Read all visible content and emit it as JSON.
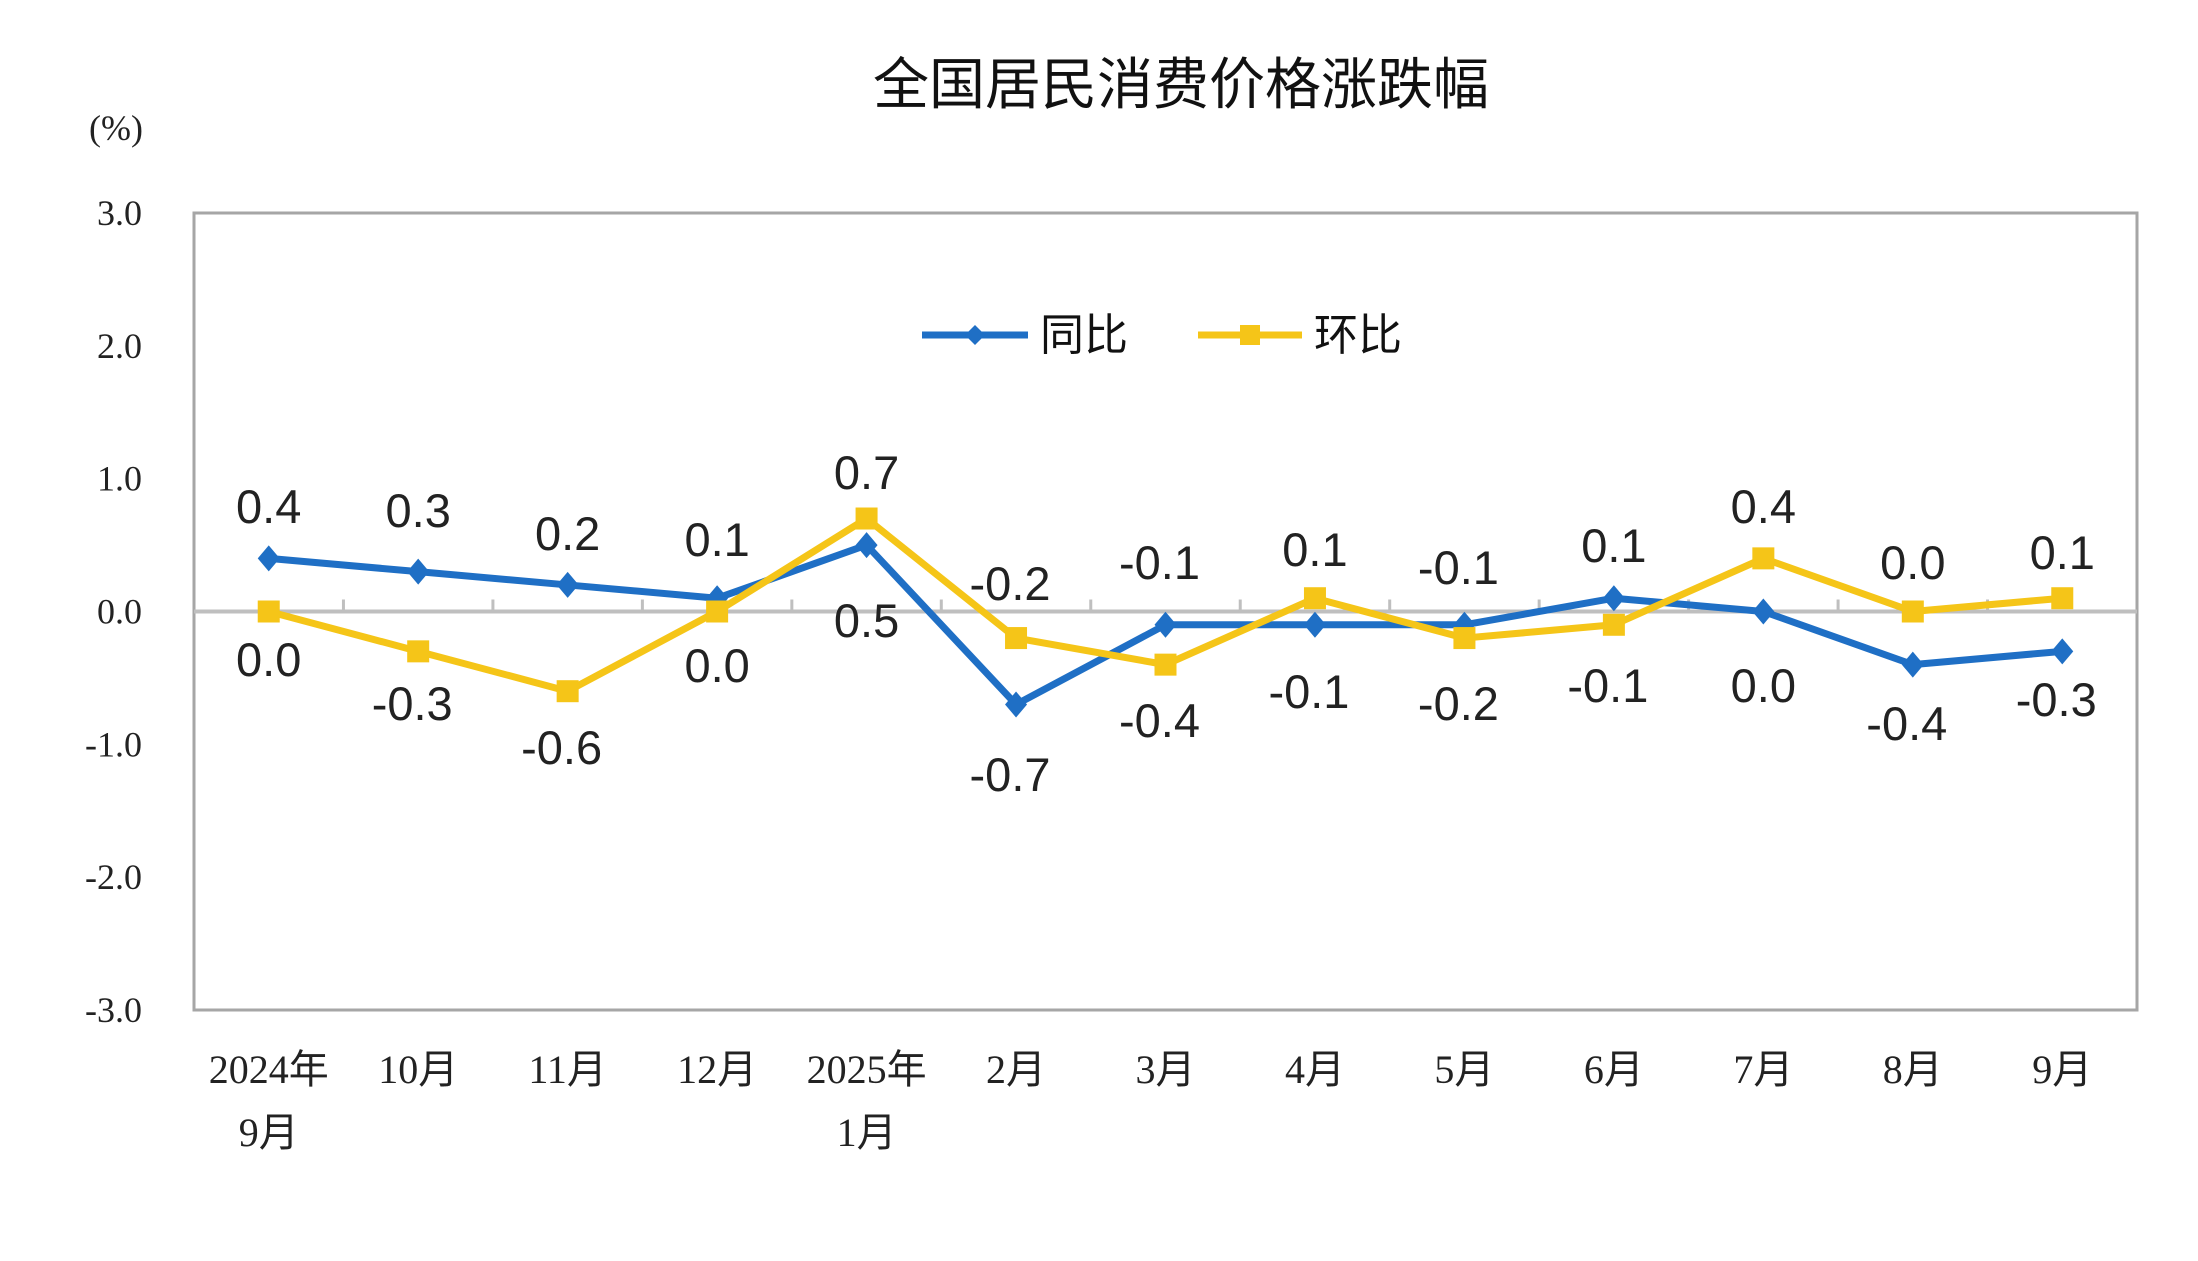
{
  "chart_data": {
    "type": "line",
    "title": "全国居民消费价格涨跌幅",
    "ylabel": "(%)",
    "ylim": [
      -3.0,
      3.0
    ],
    "yticks": [
      "3.0",
      "2.0",
      "1.0",
      "0.0",
      "-1.0",
      "-2.0",
      "-3.0"
    ],
    "categories": [
      [
        "2024年",
        "9月"
      ],
      [
        "10月"
      ],
      [
        "11月"
      ],
      [
        "12月"
      ],
      [
        "2025年",
        "1月"
      ],
      [
        "2月"
      ],
      [
        "3月"
      ],
      [
        "4月"
      ],
      [
        "5月"
      ],
      [
        "6月"
      ],
      [
        "7月"
      ],
      [
        "8月"
      ],
      [
        "9月"
      ]
    ],
    "legend_position": "top-center",
    "grid": false,
    "series": [
      {
        "name": "同比",
        "color": "#1f6fc5",
        "marker": "diamond",
        "values": [
          0.4,
          0.3,
          0.2,
          0.1,
          0.5,
          -0.7,
          -0.1,
          -0.1,
          -0.1,
          0.1,
          0.0,
          -0.4,
          -0.3
        ]
      },
      {
        "name": "环比",
        "color": "#f5c518",
        "marker": "square",
        "values": [
          0.0,
          -0.3,
          -0.6,
          0.0,
          0.7,
          -0.2,
          -0.4,
          0.1,
          -0.2,
          -0.1,
          0.4,
          0.0,
          0.1
        ]
      }
    ]
  }
}
